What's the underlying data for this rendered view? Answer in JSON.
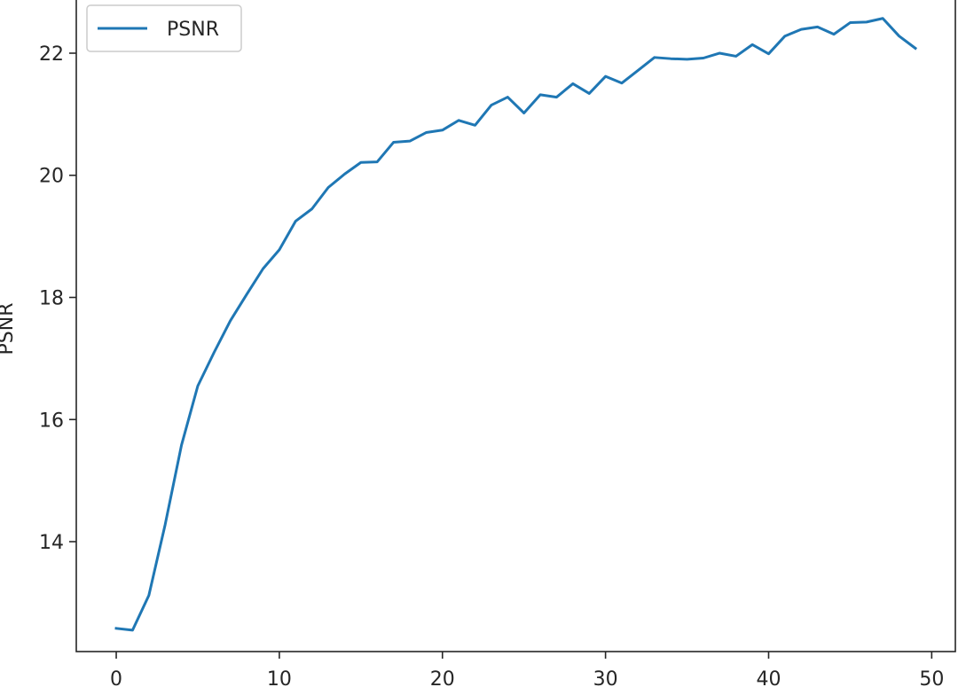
{
  "chart_data": {
    "type": "line",
    "xlabel": "",
    "ylabel": "PSNR",
    "xlim": [
      -2.45,
      51.45
    ],
    "ylim": [
      12.2,
      22.9
    ],
    "xticks": [
      0,
      10,
      20,
      30,
      40,
      50
    ],
    "yticks": [
      14,
      16,
      18,
      20,
      22
    ],
    "grid": false,
    "legend_position": "upper-left",
    "series": [
      {
        "name": "PSNR",
        "color": "#1f77b4",
        "x": [
          0,
          1,
          2,
          3,
          4,
          5,
          6,
          7,
          8,
          9,
          10,
          11,
          12,
          13,
          14,
          15,
          16,
          17,
          18,
          19,
          20,
          21,
          22,
          23,
          24,
          25,
          26,
          27,
          28,
          29,
          30,
          31,
          32,
          33,
          34,
          35,
          36,
          37,
          38,
          39,
          40,
          41,
          42,
          43,
          44,
          45,
          46,
          47,
          48,
          49
        ],
        "y": [
          12.58,
          12.55,
          13.12,
          14.28,
          15.58,
          16.55,
          17.1,
          17.62,
          18.05,
          18.47,
          18.78,
          19.25,
          19.45,
          19.8,
          20.02,
          20.21,
          20.22,
          20.54,
          20.56,
          20.7,
          20.74,
          20.9,
          20.82,
          21.15,
          21.28,
          21.02,
          21.32,
          21.28,
          21.5,
          21.34,
          21.62,
          21.51,
          21.72,
          21.93,
          21.91,
          21.9,
          21.92,
          22.0,
          21.95,
          22.14,
          21.99,
          22.28,
          22.39,
          22.43,
          22.31,
          22.5,
          22.51,
          22.57,
          22.28,
          22.08
        ]
      }
    ]
  }
}
